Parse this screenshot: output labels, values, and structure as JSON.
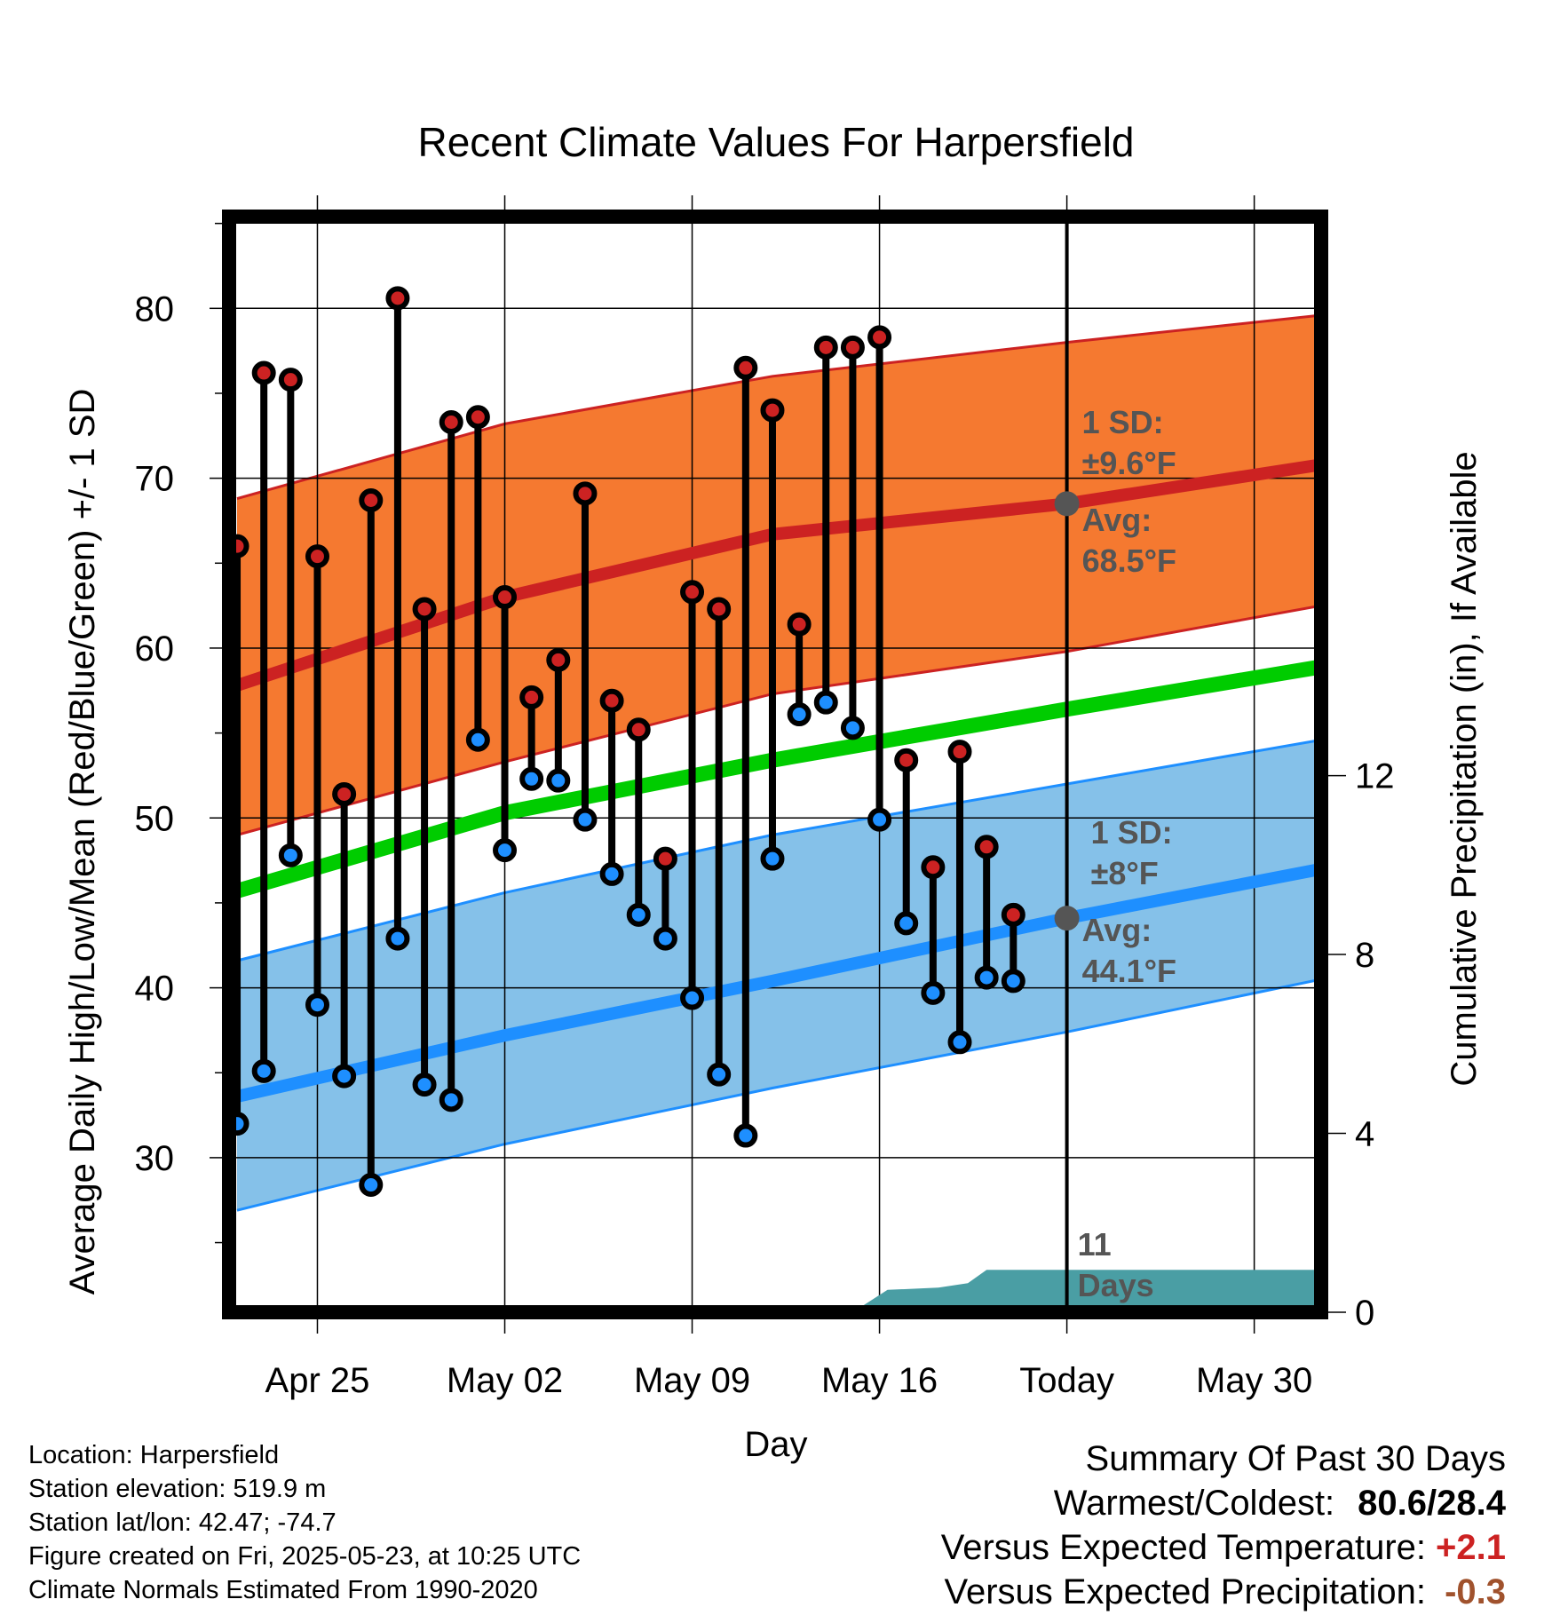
{
  "chart_data": {
    "type": "line",
    "title": "Recent Climate Values For Harpersfield",
    "xlabel": "Day",
    "ylabel_left": "Average Daily High/Low/Mean (Red/Blue/Green) +/- 1 SD",
    "ylabel_right": "Cumulative Precipitation (in), If Available",
    "x_range": [
      -0.3,
      40.5
    ],
    "x_ticks": [
      {
        "day": 3,
        "label": "Apr 25"
      },
      {
        "day": 10,
        "label": "May 02"
      },
      {
        "day": 17,
        "label": "May 09"
      },
      {
        "day": 24,
        "label": "May 16"
      },
      {
        "day": 31,
        "label": "Today"
      },
      {
        "day": 38,
        "label": "May 30"
      }
    ],
    "y_left_range": [
      20.9,
      85.4
    ],
    "y_left_ticks": [
      30,
      40,
      50,
      60,
      70,
      80
    ],
    "y_right_range": [
      0,
      24.5
    ],
    "y_right_ticks": [
      0,
      4,
      8,
      12
    ],
    "today_day": 31,
    "normals": {
      "high_mean": [
        [
          0,
          57.8
        ],
        [
          10,
          63.0
        ],
        [
          20,
          66.7
        ],
        [
          31,
          68.5
        ],
        [
          40.5,
          70.8
        ]
      ],
      "high_upper": [
        [
          0,
          68.8
        ],
        [
          10,
          73.2
        ],
        [
          20,
          76.0
        ],
        [
          31,
          78.0
        ],
        [
          40.5,
          79.6
        ]
      ],
      "high_lower": [
        [
          0,
          49.0
        ],
        [
          10,
          53.3
        ],
        [
          20,
          57.3
        ],
        [
          31,
          59.8
        ],
        [
          40.5,
          62.5
        ]
      ],
      "low_mean": [
        [
          0,
          33.6
        ],
        [
          10,
          37.2
        ],
        [
          20,
          40.4
        ],
        [
          31,
          44.1
        ],
        [
          40.5,
          47.0
        ]
      ],
      "low_upper": [
        [
          0,
          41.6
        ],
        [
          10,
          45.6
        ],
        [
          20,
          49.0
        ],
        [
          31,
          52.0
        ],
        [
          40.5,
          54.6
        ]
      ],
      "low_lower": [
        [
          0,
          26.9
        ],
        [
          10,
          30.8
        ],
        [
          20,
          34.1
        ],
        [
          31,
          37.4
        ],
        [
          40.5,
          40.5
        ]
      ],
      "mean": [
        [
          0,
          45.7
        ],
        [
          10,
          50.3
        ],
        [
          20,
          53.4
        ],
        [
          31,
          56.4
        ],
        [
          40.5,
          58.9
        ]
      ]
    },
    "daily": {
      "days": [
        0,
        1,
        2,
        3,
        4,
        5,
        6,
        7,
        8,
        9,
        10,
        11,
        12,
        13,
        14,
        15,
        16,
        17,
        18,
        19,
        20,
        21,
        22,
        23,
        24,
        25,
        26,
        27,
        28,
        29,
        30
      ],
      "high": [
        66.0,
        76.2,
        75.8,
        65.4,
        51.4,
        68.7,
        80.6,
        62.3,
        73.3,
        73.6,
        63.0,
        57.1,
        59.3,
        69.1,
        56.9,
        55.2,
        47.6,
        63.3,
        62.3,
        76.5,
        74.0,
        61.4,
        77.7,
        77.7,
        78.3,
        53.4,
        47.1,
        53.9,
        48.3,
        44.3,
        null
      ],
      "low": [
        32.0,
        35.1,
        47.8,
        39.0,
        34.8,
        28.4,
        42.9,
        34.3,
        33.4,
        54.6,
        48.1,
        52.3,
        52.2,
        49.9,
        46.7,
        44.3,
        42.9,
        39.4,
        34.9,
        31.3,
        47.6,
        56.1,
        56.8,
        55.3,
        49.9,
        43.8,
        39.7,
        36.8,
        40.6,
        40.4,
        null
      ]
    },
    "precip": [
      [
        23,
        0
      ],
      [
        24.3,
        0.5
      ],
      [
        26.2,
        0.55
      ],
      [
        27.3,
        0.65
      ],
      [
        28,
        0.95
      ],
      [
        30.1,
        0.95
      ],
      [
        40.5,
        0.95
      ]
    ],
    "annotations": {
      "high_sd": [
        "1 SD:",
        "±9.6°F"
      ],
      "high_avg": [
        "Avg:",
        "68.5°F"
      ],
      "low_sd": [
        "1 SD:",
        "±8°F"
      ],
      "low_avg": [
        "Avg:",
        "44.1°F"
      ],
      "precip_days": [
        "11",
        "Days"
      ]
    },
    "colors": {
      "high_band": "#f57930",
      "high_line": "#cc2222",
      "low_band": "#85c1e9",
      "low_line": "#1e8fff",
      "mean_line": "#00cc00",
      "high_point": "#cc2222",
      "low_point": "#1e8fff",
      "precip": "#4a9ea4",
      "avg_marker": "#555555"
    }
  },
  "info": {
    "location": "Location: Harpersfield",
    "elevation": "Station elevation: 519.9 m",
    "latlon": "Station lat/lon: 42.47; -74.7",
    "created": "Figure created on Fri, 2025-05-23, at 10:25 UTC",
    "normals": "Climate Normals Estimated From 1990-2020"
  },
  "summary": {
    "heading": "Summary Of Past 30 Days",
    "warmest_label": "Warmest/Coldest:",
    "warmest_value": "80.6/28.4",
    "temp_label": "Versus Expected Temperature:",
    "temp_value": "+2.1",
    "temp_color": "#cc2222",
    "precip_label": "Versus Expected Precipitation:",
    "precip_value": "-0.3",
    "precip_color": "#a0522d"
  }
}
